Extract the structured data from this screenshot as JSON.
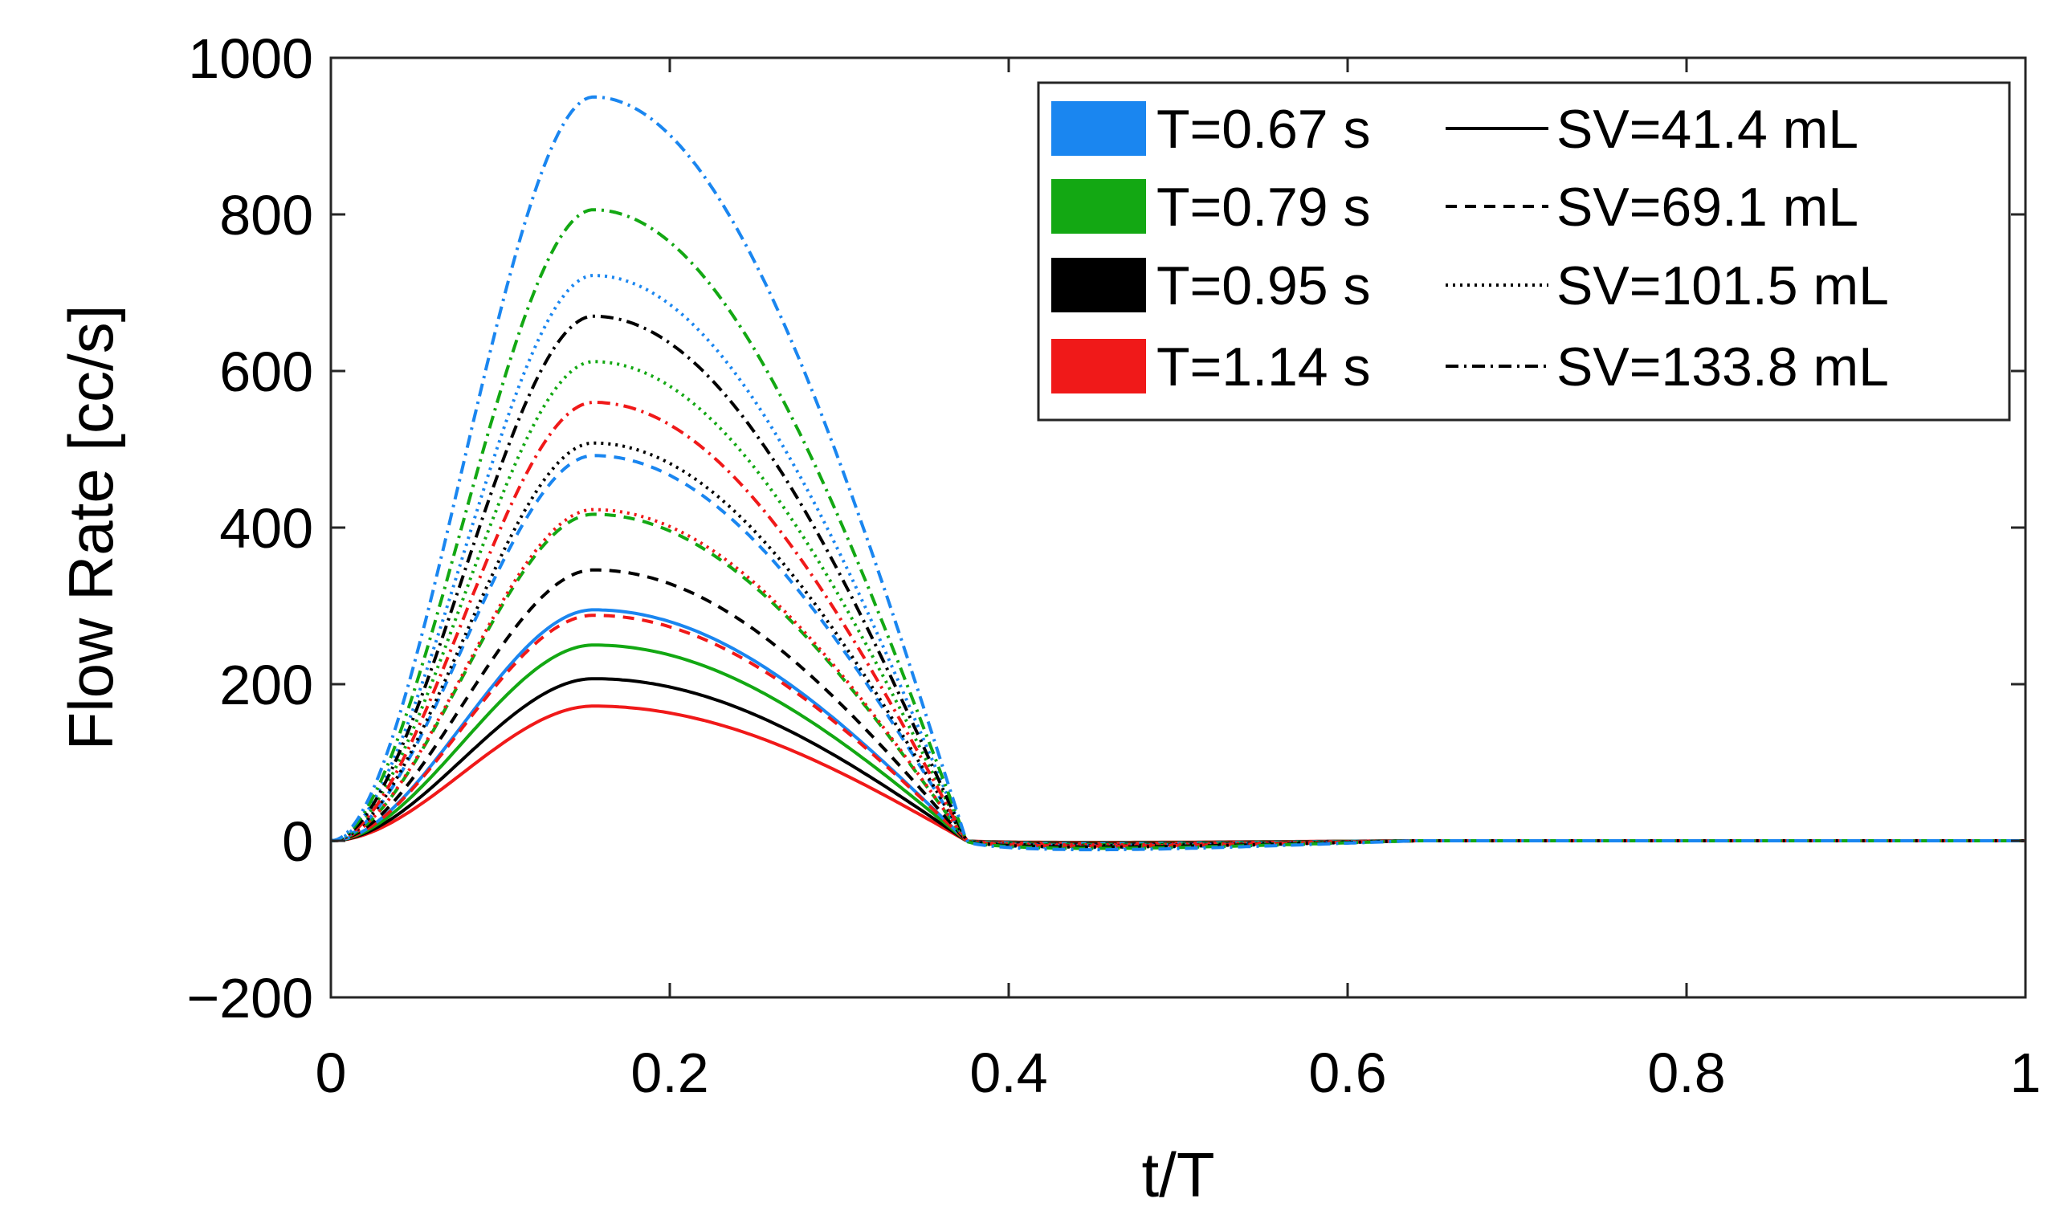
{
  "chart_data": {
    "type": "line",
    "xlabel": "t/T",
    "ylabel": "Flow Rate [cc/s]",
    "xlim": [
      0,
      1
    ],
    "ylim": [
      -200,
      1000
    ],
    "xticks": [
      0,
      0.2,
      0.4,
      0.6,
      0.8,
      1
    ],
    "xtick_labels": [
      "0",
      "0.2",
      "0.4",
      "0.6",
      "0.8",
      "1"
    ],
    "yticks": [
      -200,
      0,
      200,
      400,
      600,
      800,
      1000
    ],
    "ytick_labels": [
      "−200",
      "0",
      "200",
      "400",
      "600",
      "800",
      "1000"
    ],
    "grid": false,
    "legend_position": "top-right",
    "period_legend": [
      {
        "label": "T=0.67 s",
        "color": "#1a86f0"
      },
      {
        "label": "T=0.79 s",
        "color": "#13a813"
      },
      {
        "label": "T=0.95 s",
        "color": "#000000"
      },
      {
        "label": "T=1.14 s",
        "color": "#f01919"
      }
    ],
    "stroke_volume_legend": [
      {
        "label": "SV=41.4 mL",
        "style": "solid"
      },
      {
        "label": "SV=69.1 mL",
        "style": "dashed"
      },
      {
        "label": "SV=101.5 mL",
        "style": "dotted"
      },
      {
        "label": "SV=133.8 mL",
        "style": "dashdot"
      }
    ],
    "waveform": {
      "peak_t": 0.155,
      "zero_crossing_t": 0.375,
      "undershoot_fraction": 0.012
    },
    "series": [
      {
        "name": "T=1.14 s, SV=41.4 mL",
        "color": "#f01919",
        "style": "solid",
        "peak": 172
      },
      {
        "name": "T=0.95 s, SV=41.4 mL",
        "color": "#000000",
        "style": "solid",
        "peak": 207
      },
      {
        "name": "T=0.79 s, SV=41.4 mL",
        "color": "#13a813",
        "style": "solid",
        "peak": 250
      },
      {
        "name": "T=0.67 s, SV=41.4 mL",
        "color": "#1a86f0",
        "style": "solid",
        "peak": 295
      },
      {
        "name": "T=1.14 s, SV=69.1 mL",
        "color": "#f01919",
        "style": "dashed",
        "peak": 288
      },
      {
        "name": "T=0.95 s, SV=69.1 mL",
        "color": "#000000",
        "style": "dashed",
        "peak": 346
      },
      {
        "name": "T=0.79 s, SV=69.1 mL",
        "color": "#13a813",
        "style": "dashed",
        "peak": 417
      },
      {
        "name": "T=0.67 s, SV=69.1 mL",
        "color": "#1a86f0",
        "style": "dashed",
        "peak": 492
      },
      {
        "name": "T=1.14 s, SV=101.5 mL",
        "color": "#f01919",
        "style": "dotted",
        "peak": 423
      },
      {
        "name": "T=0.95 s, SV=101.5 mL",
        "color": "#000000",
        "style": "dotted",
        "peak": 508
      },
      {
        "name": "T=0.79 s, SV=101.5 mL",
        "color": "#13a813",
        "style": "dotted",
        "peak": 612
      },
      {
        "name": "T=0.67 s, SV=101.5 mL",
        "color": "#1a86f0",
        "style": "dotted",
        "peak": 722
      },
      {
        "name": "T=1.14 s, SV=133.8 mL",
        "color": "#f01919",
        "style": "dashdot",
        "peak": 560
      },
      {
        "name": "T=0.95 s, SV=133.8 mL",
        "color": "#000000",
        "style": "dashdot",
        "peak": 670
      },
      {
        "name": "T=0.79 s, SV=133.8 mL",
        "color": "#13a813",
        "style": "dashdot",
        "peak": 806
      },
      {
        "name": "T=0.67 s, SV=133.8 mL",
        "color": "#1a86f0",
        "style": "dashdot",
        "peak": 950
      }
    ]
  }
}
